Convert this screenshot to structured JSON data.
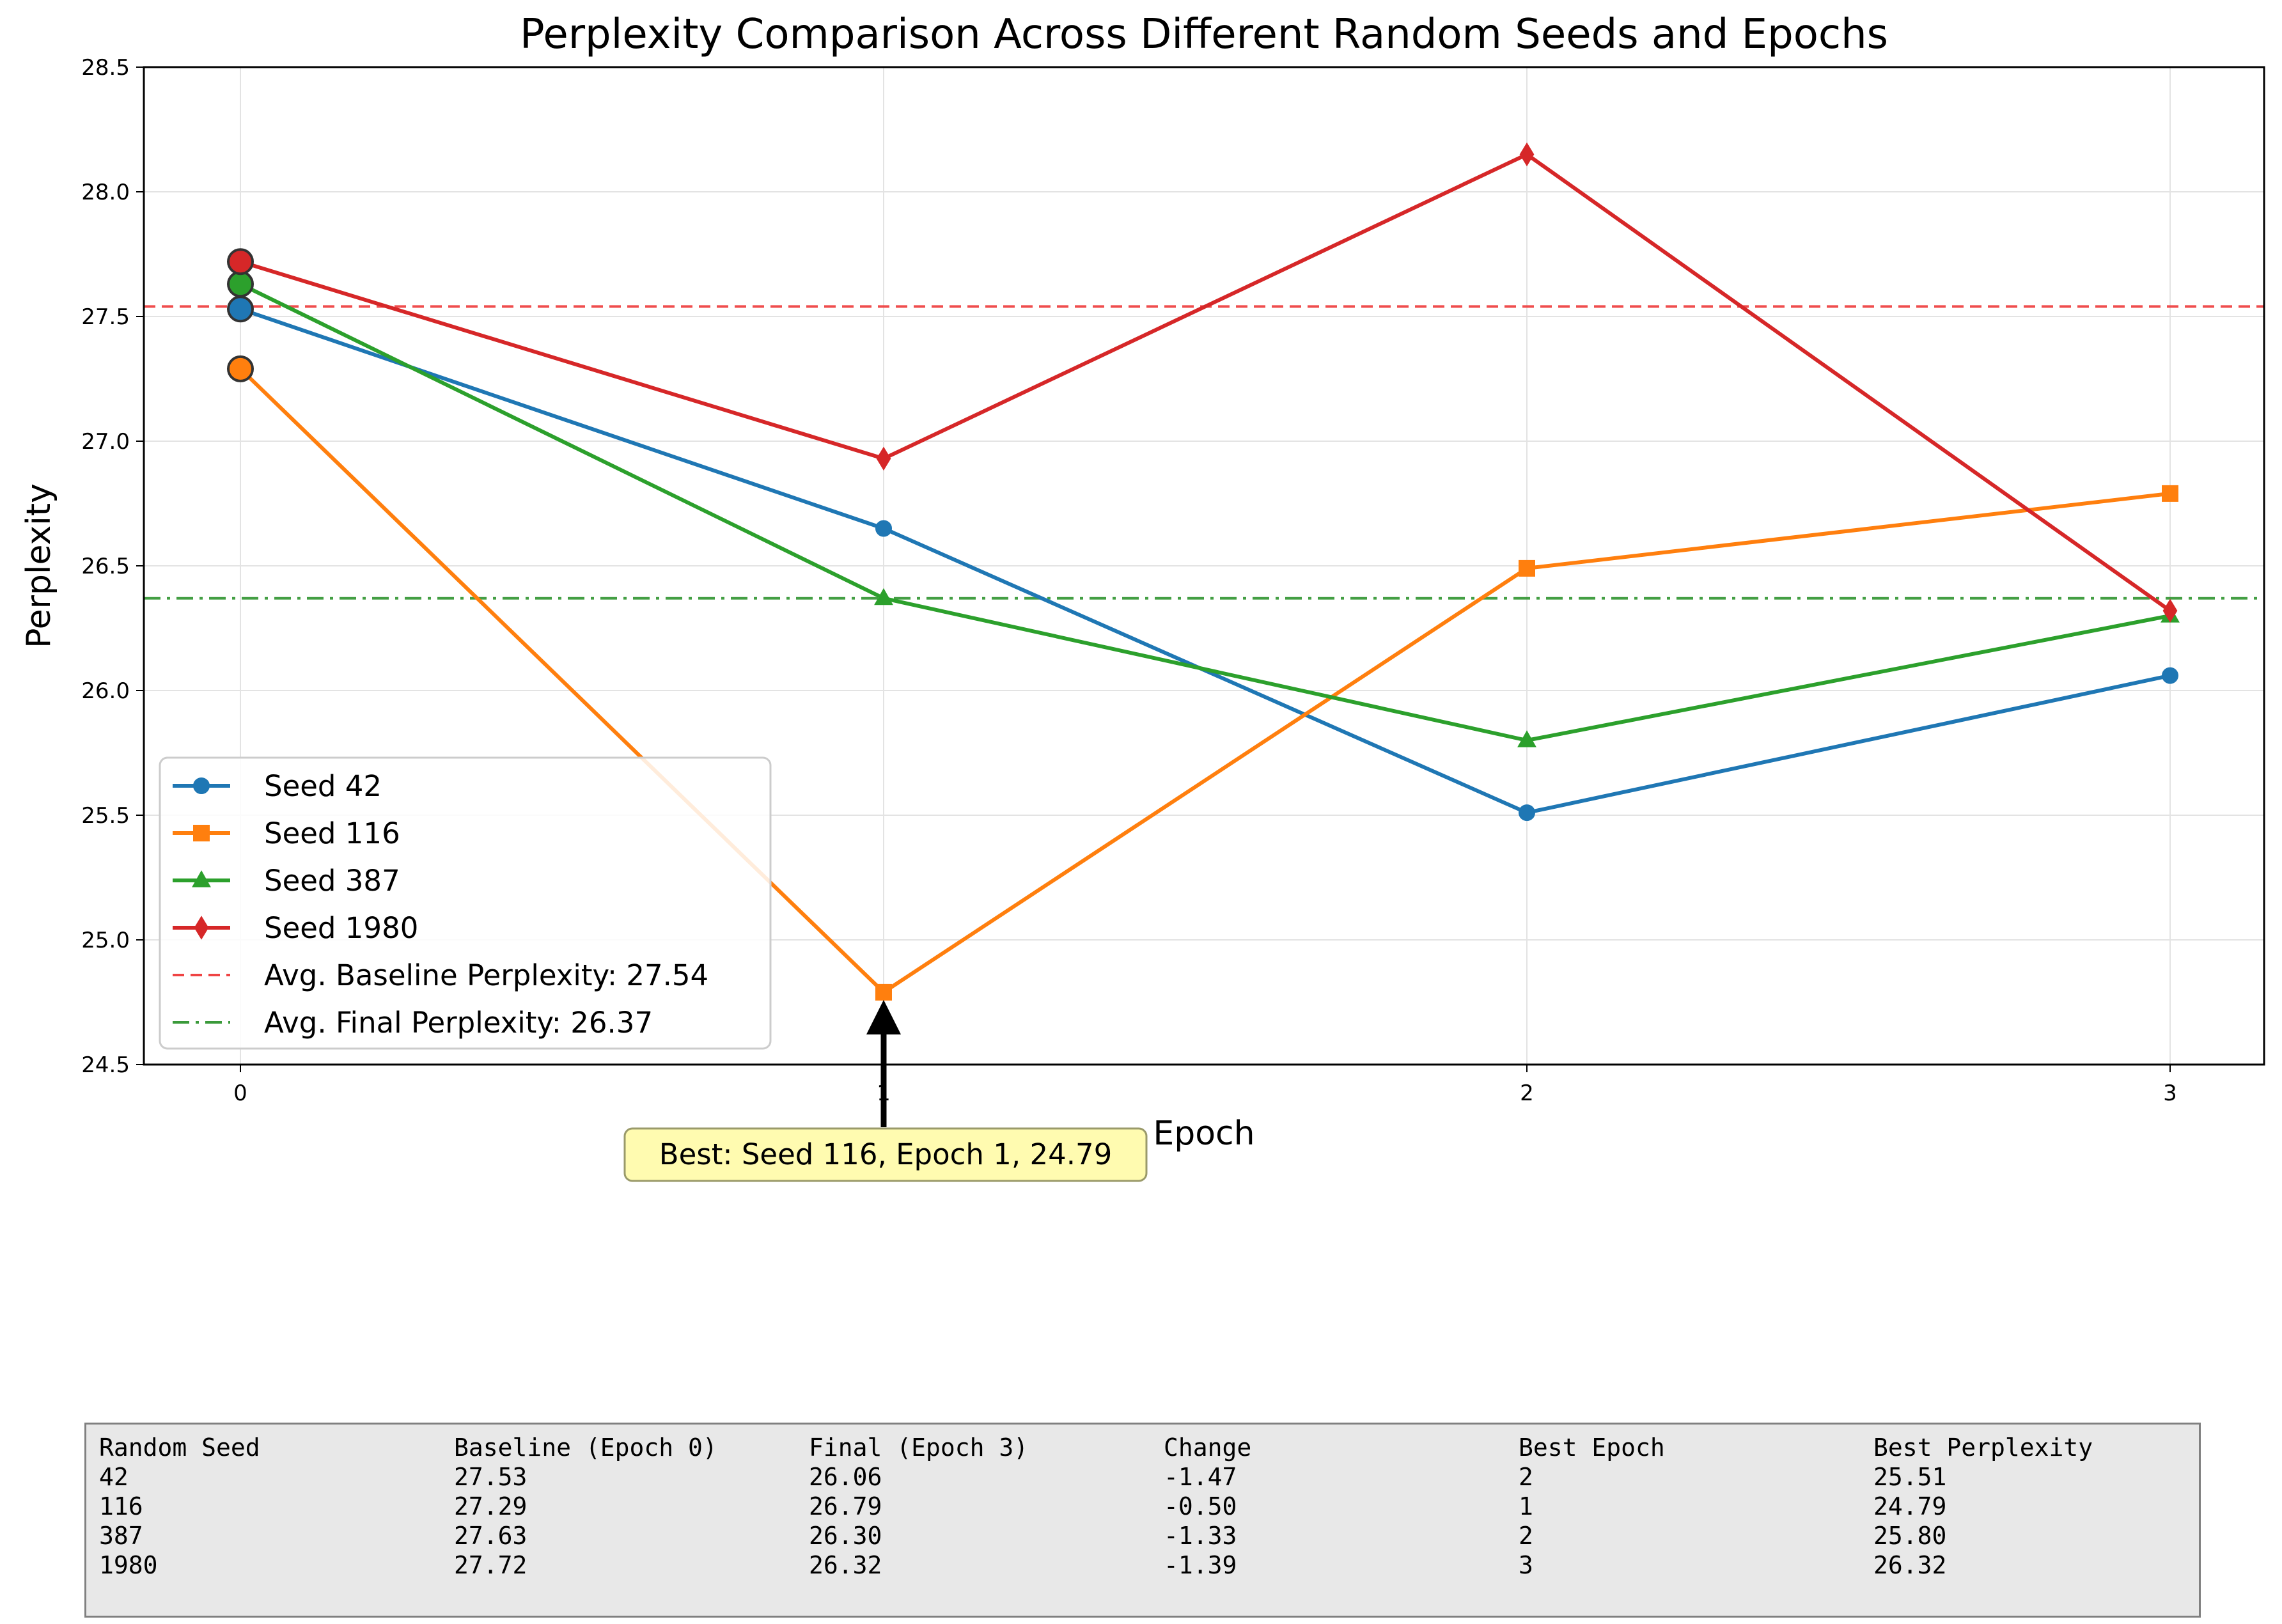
{
  "chart_data": {
    "type": "line",
    "title": "Perplexity Comparison Across Different Random Seeds and Epochs",
    "xlabel": "Epoch",
    "ylabel": "Perplexity",
    "x": [
      0,
      1,
      2,
      3
    ],
    "xticks": [
      "0",
      "1",
      "2",
      "3"
    ],
    "ylim": [
      24.5,
      28.5
    ],
    "yticks": [
      "24.5",
      "25.0",
      "25.5",
      "26.0",
      "26.5",
      "27.0",
      "27.5",
      "28.0",
      "28.5"
    ],
    "grid": true,
    "legend_position": "lower-left",
    "series": [
      {
        "name": "Seed 42",
        "values": [
          27.53,
          26.65,
          25.51,
          26.06
        ],
        "color": "#1f77b4",
        "marker": "circle"
      },
      {
        "name": "Seed 116",
        "values": [
          27.29,
          24.79,
          26.49,
          26.79
        ],
        "color": "#ff7f0e",
        "marker": "square"
      },
      {
        "name": "Seed 387",
        "values": [
          27.63,
          26.37,
          25.8,
          26.3
        ],
        "color": "#2ca02c",
        "marker": "triangle"
      },
      {
        "name": "Seed 1980",
        "values": [
          27.72,
          26.93,
          28.15,
          26.32
        ],
        "color": "#d62728",
        "marker": "diamond"
      }
    ],
    "reference_lines": [
      {
        "name": "Avg. Baseline Perplexity: 27.54",
        "value": 27.54,
        "color": "#ef4444",
        "style": "dashed"
      },
      {
        "name": "Avg. Final Perplexity: 26.37",
        "value": 26.37,
        "color": "#3a9a3a",
        "style": "dashdot"
      }
    ],
    "annotation": {
      "text": "Best: Seed 116, Epoch 1, 24.79",
      "x": 1,
      "y": 24.79
    }
  },
  "table": {
    "headers": [
      "Random Seed",
      "Baseline (Epoch 0)",
      "Final (Epoch 3)",
      "Change",
      "Best Epoch",
      "Best Perplexity"
    ],
    "rows": [
      [
        "42",
        "27.53",
        "26.06",
        "-1.47",
        "2",
        "25.51"
      ],
      [
        "116",
        "27.29",
        "26.79",
        "-0.50",
        "1",
        "24.79"
      ],
      [
        "387",
        "27.63",
        "26.30",
        "-1.33",
        "2",
        "25.80"
      ],
      [
        "1980",
        "27.72",
        "26.32",
        "-1.39",
        "3",
        "26.32"
      ]
    ]
  }
}
